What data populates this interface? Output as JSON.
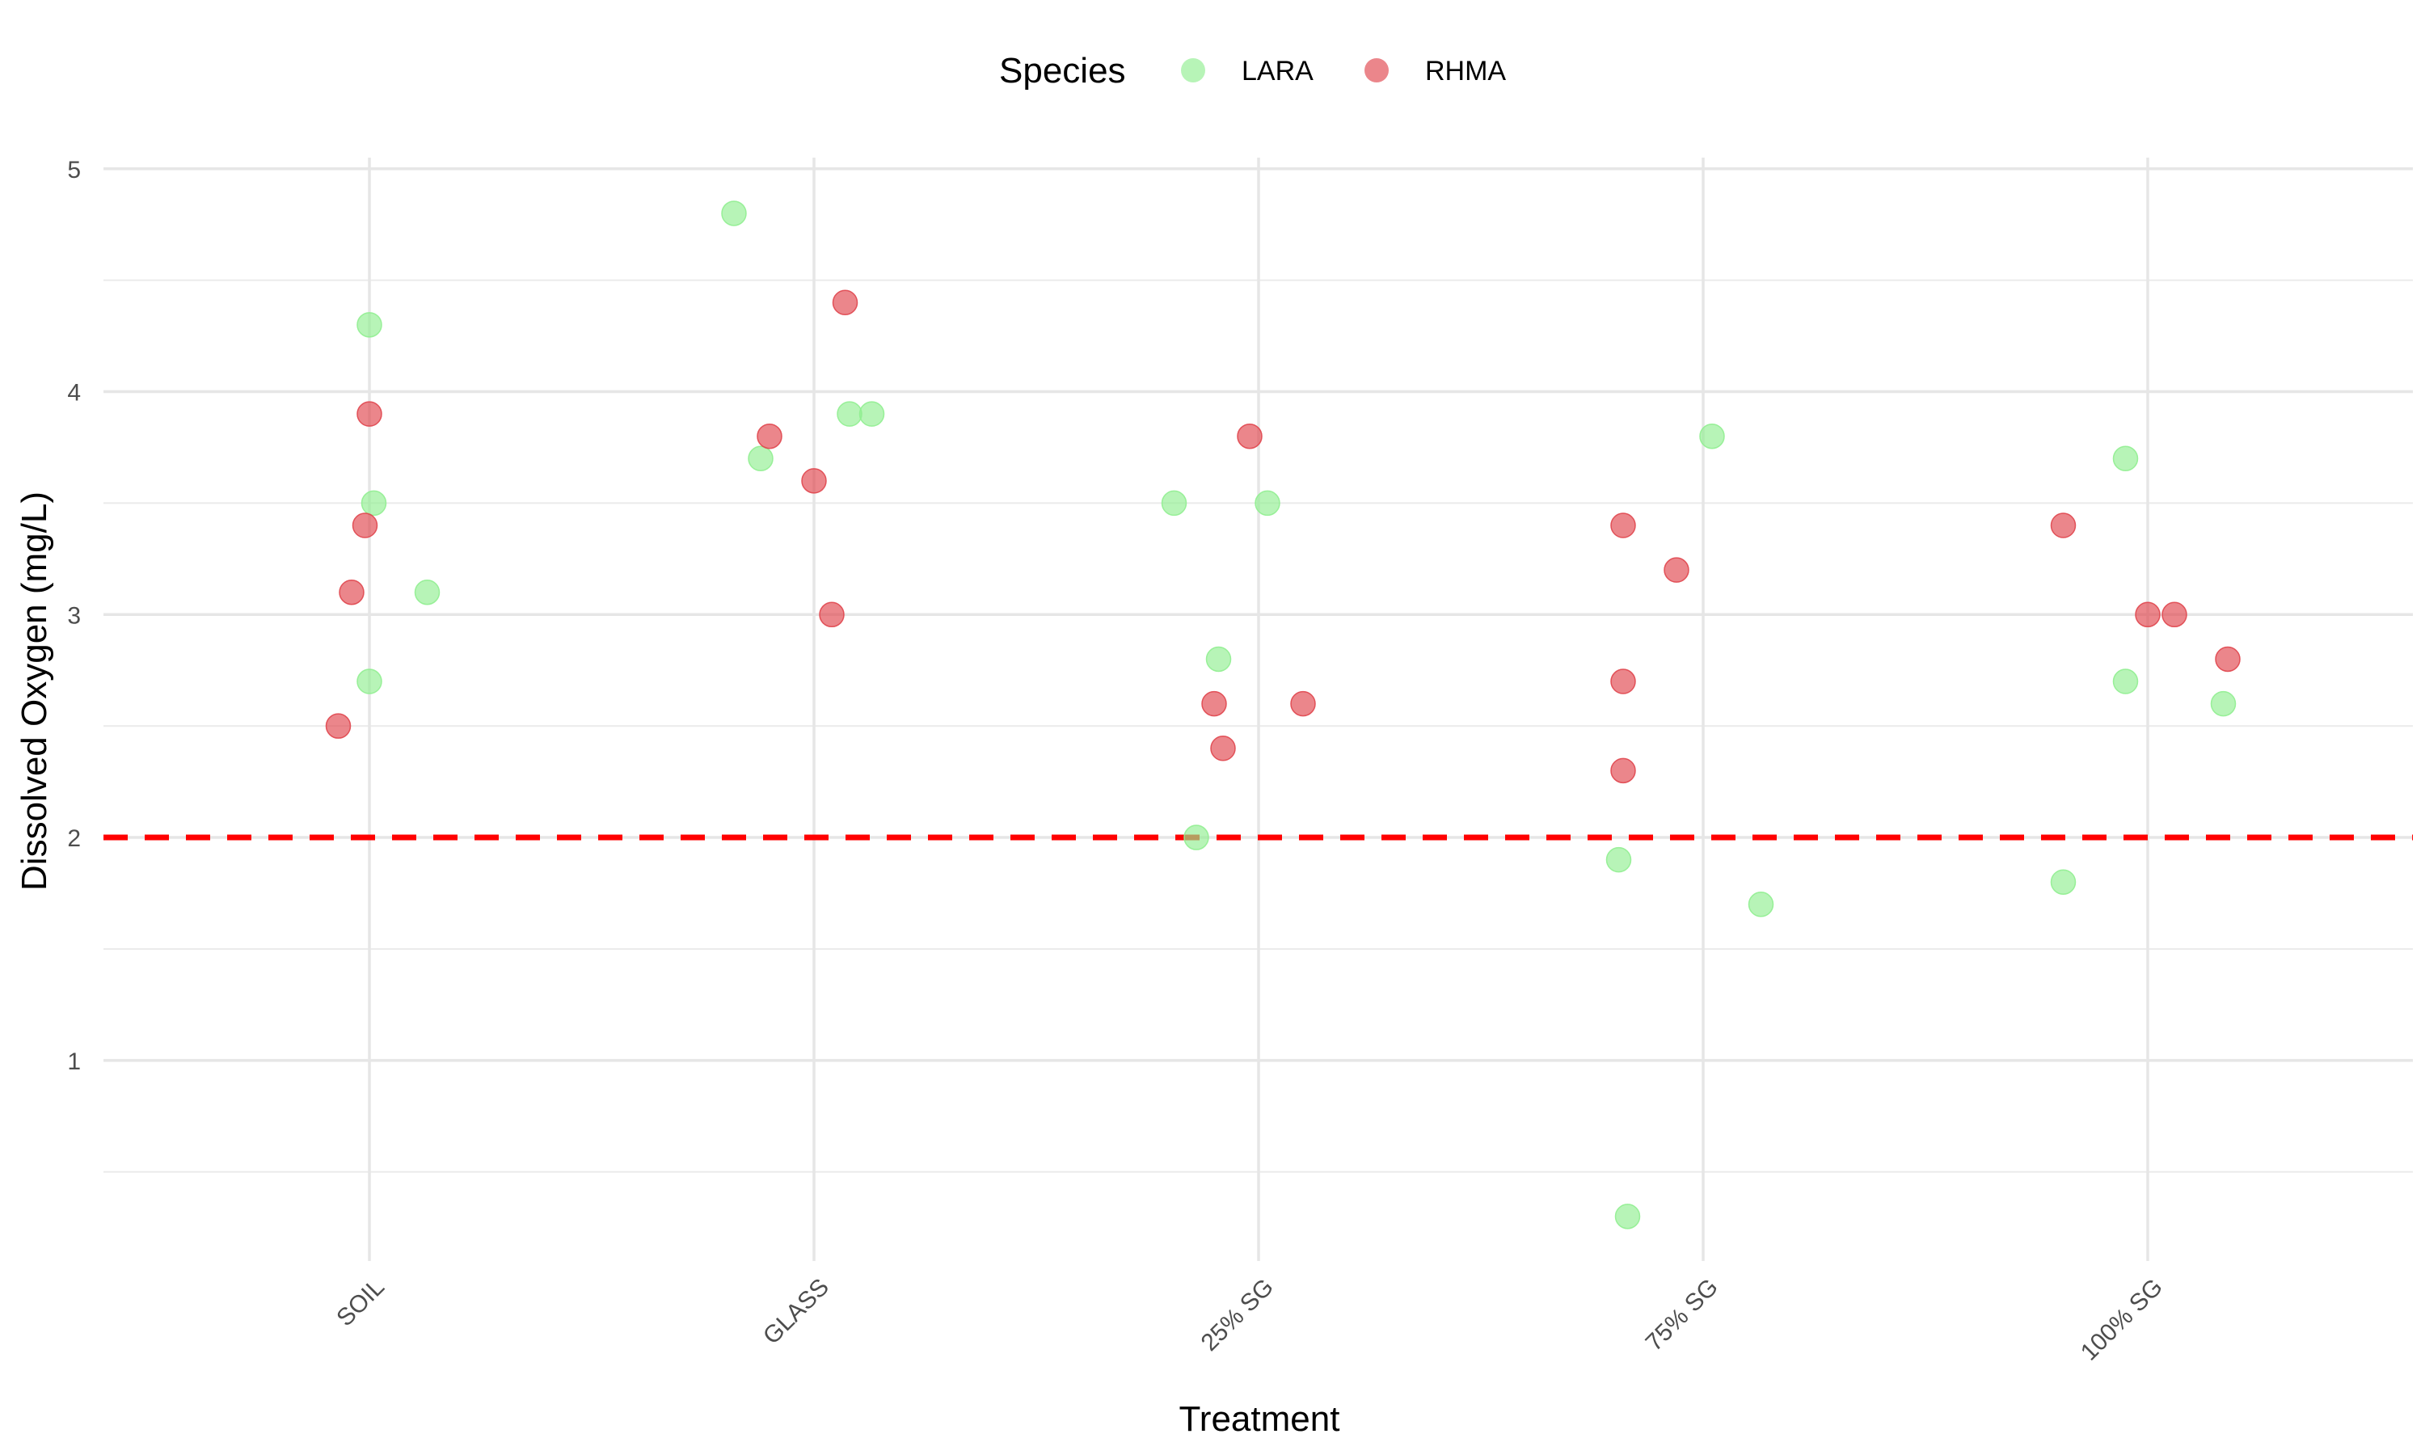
{
  "chart_data": {
    "type": "scatter",
    "xlabel": "Treatment",
    "ylabel": "Dissolved Oxygen (mg/L)",
    "categories": [
      "SOIL",
      "GLASS",
      "25% SG",
      "75% SG",
      "100% SG"
    ],
    "ylim": [
      0.1,
      5.05
    ],
    "yticks": [
      1,
      2,
      3,
      4,
      5
    ],
    "grid": true,
    "legend": {
      "title": "Species",
      "position": "top",
      "entries": [
        "LARA",
        "RHMA"
      ]
    },
    "reference_line": {
      "y": 2,
      "color": "#ff0000",
      "style": "dashed"
    },
    "series": [
      {
        "name": "LARA",
        "color": "#90ee90",
        "points": [
          {
            "x": "SOIL",
            "jitter": 0.0,
            "y": 4.3
          },
          {
            "x": "SOIL",
            "jitter": 0.01,
            "y": 3.5
          },
          {
            "x": "SOIL",
            "jitter": 0.13,
            "y": 3.1
          },
          {
            "x": "SOIL",
            "jitter": 0.0,
            "y": 2.7
          },
          {
            "x": "GLASS",
            "jitter": -0.18,
            "y": 4.8
          },
          {
            "x": "GLASS",
            "jitter": -0.12,
            "y": 3.7
          },
          {
            "x": "GLASS",
            "jitter": 0.08,
            "y": 3.9
          },
          {
            "x": "GLASS",
            "jitter": 0.13,
            "y": 3.9
          },
          {
            "x": "25% SG",
            "jitter": -0.19,
            "y": 3.5
          },
          {
            "x": "25% SG",
            "jitter": 0.02,
            "y": 3.5
          },
          {
            "x": "25% SG",
            "jitter": -0.09,
            "y": 2.8
          },
          {
            "x": "25% SG",
            "jitter": -0.14,
            "y": 2.0
          },
          {
            "x": "75% SG",
            "jitter": 0.02,
            "y": 3.8
          },
          {
            "x": "75% SG",
            "jitter": -0.19,
            "y": 1.9
          },
          {
            "x": "75% SG",
            "jitter": 0.13,
            "y": 1.7
          },
          {
            "x": "75% SG",
            "jitter": -0.17,
            "y": 0.3
          },
          {
            "x": "100% SG",
            "jitter": -0.05,
            "y": 3.7
          },
          {
            "x": "100% SG",
            "jitter": -0.05,
            "y": 2.7
          },
          {
            "x": "100% SG",
            "jitter": 0.17,
            "y": 2.6
          },
          {
            "x": "100% SG",
            "jitter": -0.19,
            "y": 1.8
          }
        ]
      },
      {
        "name": "RHMA",
        "color": "#e0454d",
        "points": [
          {
            "x": "SOIL",
            "jitter": 0.0,
            "y": 3.9
          },
          {
            "x": "SOIL",
            "jitter": -0.01,
            "y": 3.4
          },
          {
            "x": "SOIL",
            "jitter": -0.04,
            "y": 3.1
          },
          {
            "x": "SOIL",
            "jitter": -0.07,
            "y": 2.5
          },
          {
            "x": "GLASS",
            "jitter": 0.07,
            "y": 4.4
          },
          {
            "x": "GLASS",
            "jitter": -0.1,
            "y": 3.8
          },
          {
            "x": "GLASS",
            "jitter": 0.0,
            "y": 3.6
          },
          {
            "x": "GLASS",
            "jitter": 0.04,
            "y": 3.0
          },
          {
            "x": "25% SG",
            "jitter": -0.02,
            "y": 3.8
          },
          {
            "x": "25% SG",
            "jitter": -0.1,
            "y": 2.6
          },
          {
            "x": "25% SG",
            "jitter": 0.1,
            "y": 2.6
          },
          {
            "x": "25% SG",
            "jitter": -0.08,
            "y": 2.4
          },
          {
            "x": "75% SG",
            "jitter": -0.18,
            "y": 3.4
          },
          {
            "x": "75% SG",
            "jitter": -0.06,
            "y": 3.2
          },
          {
            "x": "75% SG",
            "jitter": -0.18,
            "y": 2.7
          },
          {
            "x": "75% SG",
            "jitter": -0.18,
            "y": 2.3
          },
          {
            "x": "100% SG",
            "jitter": -0.19,
            "y": 3.4
          },
          {
            "x": "100% SG",
            "jitter": 0.0,
            "y": 3.0
          },
          {
            "x": "100% SG",
            "jitter": 0.06,
            "y": 3.0
          },
          {
            "x": "100% SG",
            "jitter": 0.18,
            "y": 2.8
          }
        ]
      }
    ]
  }
}
